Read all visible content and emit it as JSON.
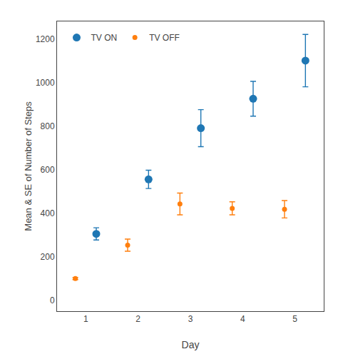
{
  "chart_data": {
    "type": "scatter",
    "xlabel": "Day",
    "ylabel": "Mean & SE of Number of Steps",
    "series": [
      {
        "name": "TV ON",
        "x": [
          1.2,
          2.2,
          3.2,
          4.2,
          5.2
        ],
        "values": [
          305,
          555,
          790,
          925,
          1100
        ],
        "yerr": [
          28,
          42,
          85,
          80,
          120
        ],
        "marker": "circle"
      },
      {
        "name": "TV OFF",
        "x": [
          0.8,
          1.8,
          2.8,
          3.8,
          4.8
        ],
        "values": [
          100,
          253,
          442,
          422,
          418
        ],
        "yerr": [
          5,
          28,
          50,
          30,
          40
        ],
        "marker": "circle"
      }
    ],
    "xlim": [
      0.45,
      5.55
    ],
    "ylim": [
      -50,
      1280
    ],
    "xticks": [
      1,
      2,
      3,
      4,
      5
    ],
    "yticks": [
      0,
      200,
      400,
      600,
      800,
      1000,
      1200
    ],
    "grid": false,
    "legend": "upper left"
  }
}
